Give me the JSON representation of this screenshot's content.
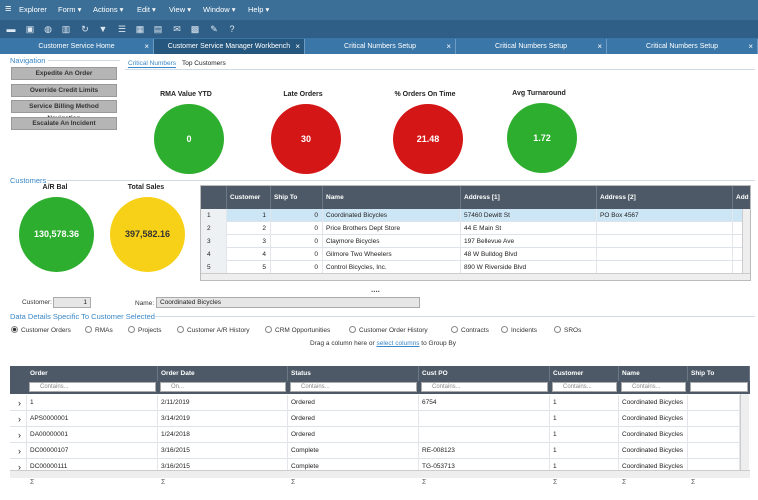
{
  "menubar": {
    "app_title": "Explorer",
    "items": [
      "Form ▾",
      "Actions ▾",
      "Edit ▾",
      "View ▾",
      "Window ▾",
      "Help ▾"
    ]
  },
  "tabs": [
    {
      "label": "Customer Service Home",
      "active": false
    },
    {
      "label": "Customer Service Manager Workbench",
      "active": true
    },
    {
      "label": "Critical Numbers Setup",
      "active": false
    },
    {
      "label": "Critical Numbers Setup",
      "active": false
    },
    {
      "label": "Critical Numbers Setup",
      "active": false
    }
  ],
  "navigation": {
    "title": "Navigation",
    "buttons": [
      "Expedite An Order",
      "Override Credit Limits",
      "Service Billing Method Navigation",
      "Escalate An Incident"
    ]
  },
  "subtabs": [
    "Critical Numbers",
    "Top Customers"
  ],
  "kpis": [
    {
      "label": "RMA Value YTD",
      "value": "0",
      "color": "#2eae2e"
    },
    {
      "label": "Late Orders",
      "value": "30",
      "color": "#d41616"
    },
    {
      "label": "% Orders On Time",
      "value": "21.48",
      "color": "#d41616"
    },
    {
      "label": "Avg Turnaround",
      "value": "1.72",
      "color": "#2eae2e"
    }
  ],
  "customers": {
    "title": "Customers",
    "ar_bal_label": "A/R Bal",
    "ar_bal_value": "130,578.36",
    "ar_bal_color": "#2eae2e",
    "total_sales_label": "Total Sales",
    "total_sales_value": "397,582.16",
    "total_sales_color": "#f7d117",
    "columns": [
      "Customer",
      "Ship To",
      "Name",
      "Address [1]",
      "Address [2]",
      "Add"
    ],
    "rows": [
      {
        "n": "1",
        "customer": "1",
        "ship_to": "0",
        "name": "Coordinated Bicycles",
        "addr1": "57460 Dewitt St",
        "addr2": "PO Box 4567"
      },
      {
        "n": "2",
        "customer": "2",
        "ship_to": "0",
        "name": "Price Brothers Dept Store",
        "addr1": "44 E Main St",
        "addr2": ""
      },
      {
        "n": "3",
        "customer": "3",
        "ship_to": "0",
        "name": "Claymore Bicycles",
        "addr1": "197 Bellevue Ave",
        "addr2": ""
      },
      {
        "n": "4",
        "customer": "4",
        "ship_to": "0",
        "name": "Gilmore Two Wheelers",
        "addr1": "48 W Bulldog Blvd",
        "addr2": ""
      },
      {
        "n": "5",
        "customer": "5",
        "ship_to": "0",
        "name": "Control Bicycles, Inc.",
        "addr1": "890 W Riverside Blvd",
        "addr2": ""
      }
    ]
  },
  "ellipsis": "....",
  "detail": {
    "customer_label": "Customer:",
    "customer_value": "1",
    "name_label": "Name:",
    "name_value": "Coordinated Bicycles",
    "title": "Data Details Specific To Customer Selected",
    "radios": [
      {
        "label": "Customer Orders",
        "checked": true
      },
      {
        "label": "RMAs",
        "checked": false
      },
      {
        "label": "Projects",
        "checked": false
      },
      {
        "label": "Customer A/R History",
        "checked": false
      },
      {
        "label": "CRM Opportunities",
        "checked": false
      },
      {
        "label": "Customer Order History",
        "checked": false
      },
      {
        "label": "Contracts",
        "checked": false
      },
      {
        "label": "Incidents",
        "checked": false
      },
      {
        "label": "SROs",
        "checked": false
      }
    ],
    "group_hint_pre": "Drag a column here or ",
    "group_hint_link": "select columns",
    "group_hint_post": " to Group By"
  },
  "orders": {
    "columns": [
      "Order",
      "Order Date",
      "Status",
      "Cust PO",
      "Customer",
      "Name",
      "Ship To"
    ],
    "filters": [
      "Contains...",
      "On...",
      "Contains...",
      "Contains...",
      "Contains...",
      "Contains...",
      ""
    ],
    "rows": [
      {
        "order": "1",
        "date": "2/11/2019",
        "status": "Ordered",
        "po": "6754",
        "customer": "1",
        "name": "Coordinated Bicycles"
      },
      {
        "order": "APS0000001",
        "date": "3/14/2019",
        "status": "Ordered",
        "po": "",
        "customer": "1",
        "name": "Coordinated Bicycles"
      },
      {
        "order": "DA00000001",
        "date": "1/24/2018",
        "status": "Ordered",
        "po": "",
        "customer": "1",
        "name": "Coordinated Bicycles"
      },
      {
        "order": "DC00000107",
        "date": "3/16/2015",
        "status": "Complete",
        "po": "RE-008123",
        "customer": "1",
        "name": "Coordinated Bicycles"
      },
      {
        "order": "DC00000111",
        "date": "3/16/2015",
        "status": "Complete",
        "po": "TG-053713",
        "customer": "1",
        "name": "Coordinated Bicycles"
      }
    ],
    "sigma": "Σ"
  }
}
